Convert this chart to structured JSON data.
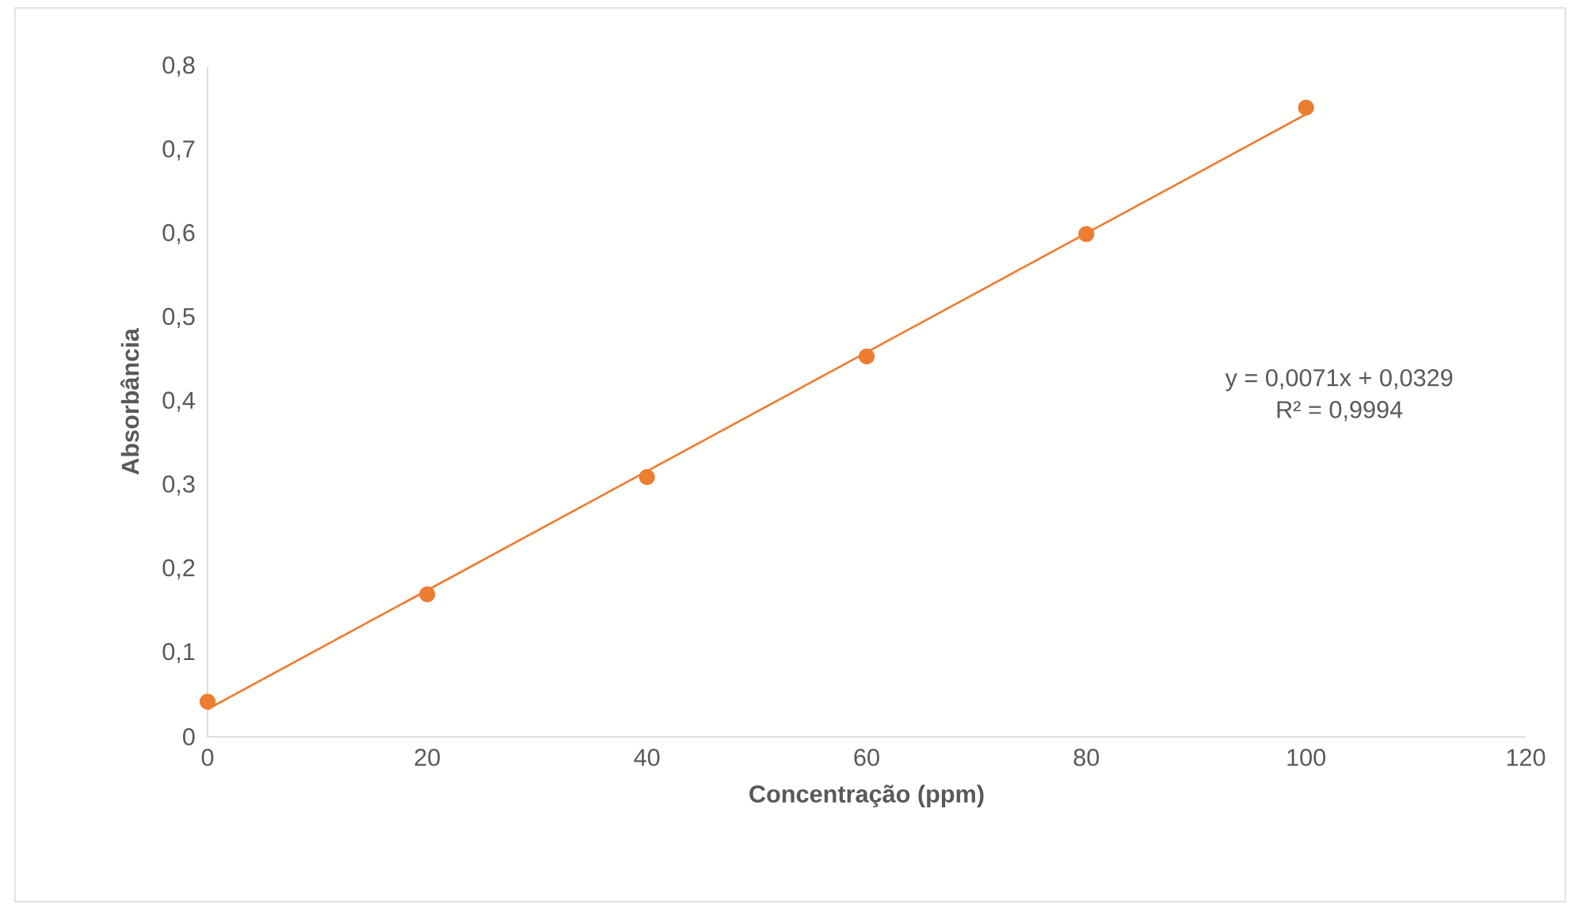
{
  "chart_data": {
    "type": "scatter",
    "xlabel": "Concentração (ppm)",
    "ylabel": "Absorbância",
    "series": [
      {
        "color": "#ed7d31",
        "marker": "circle",
        "x": [
          0,
          20,
          40,
          60,
          80,
          100
        ],
        "values": [
          0.042,
          0.17,
          0.31,
          0.454,
          0.6,
          0.751
        ]
      },
      {
        "type": "line",
        "marker": "none",
        "color": "#ed7d31",
        "x": [
          0,
          100
        ],
        "values": [
          0.033,
          0.743
        ]
      }
    ],
    "grid": false,
    "xlim": [
      0,
      120
    ],
    "xticks": [
      0,
      20,
      40,
      60,
      80,
      100,
      120
    ],
    "ylim": [
      0,
      0.8
    ],
    "yticks": [
      0,
      {
        "value": 0.1,
        "label": "0,1"
      },
      {
        "value": 0.2,
        "label": "0,2"
      },
      {
        "value": 0.3,
        "label": "0,3"
      },
      {
        "value": 0.4,
        "label": "0,4"
      },
      {
        "value": 0.5,
        "label": "0,5"
      },
      {
        "value": 0.6,
        "label": "0,6"
      },
      {
        "value": 0.7,
        "label": "0,7"
      },
      {
        "value": 0.8,
        "label": "0,8"
      }
    ],
    "annotations": [
      "y = 0,0071x + 0,0329",
      "R² = 0,9994"
    ]
  }
}
